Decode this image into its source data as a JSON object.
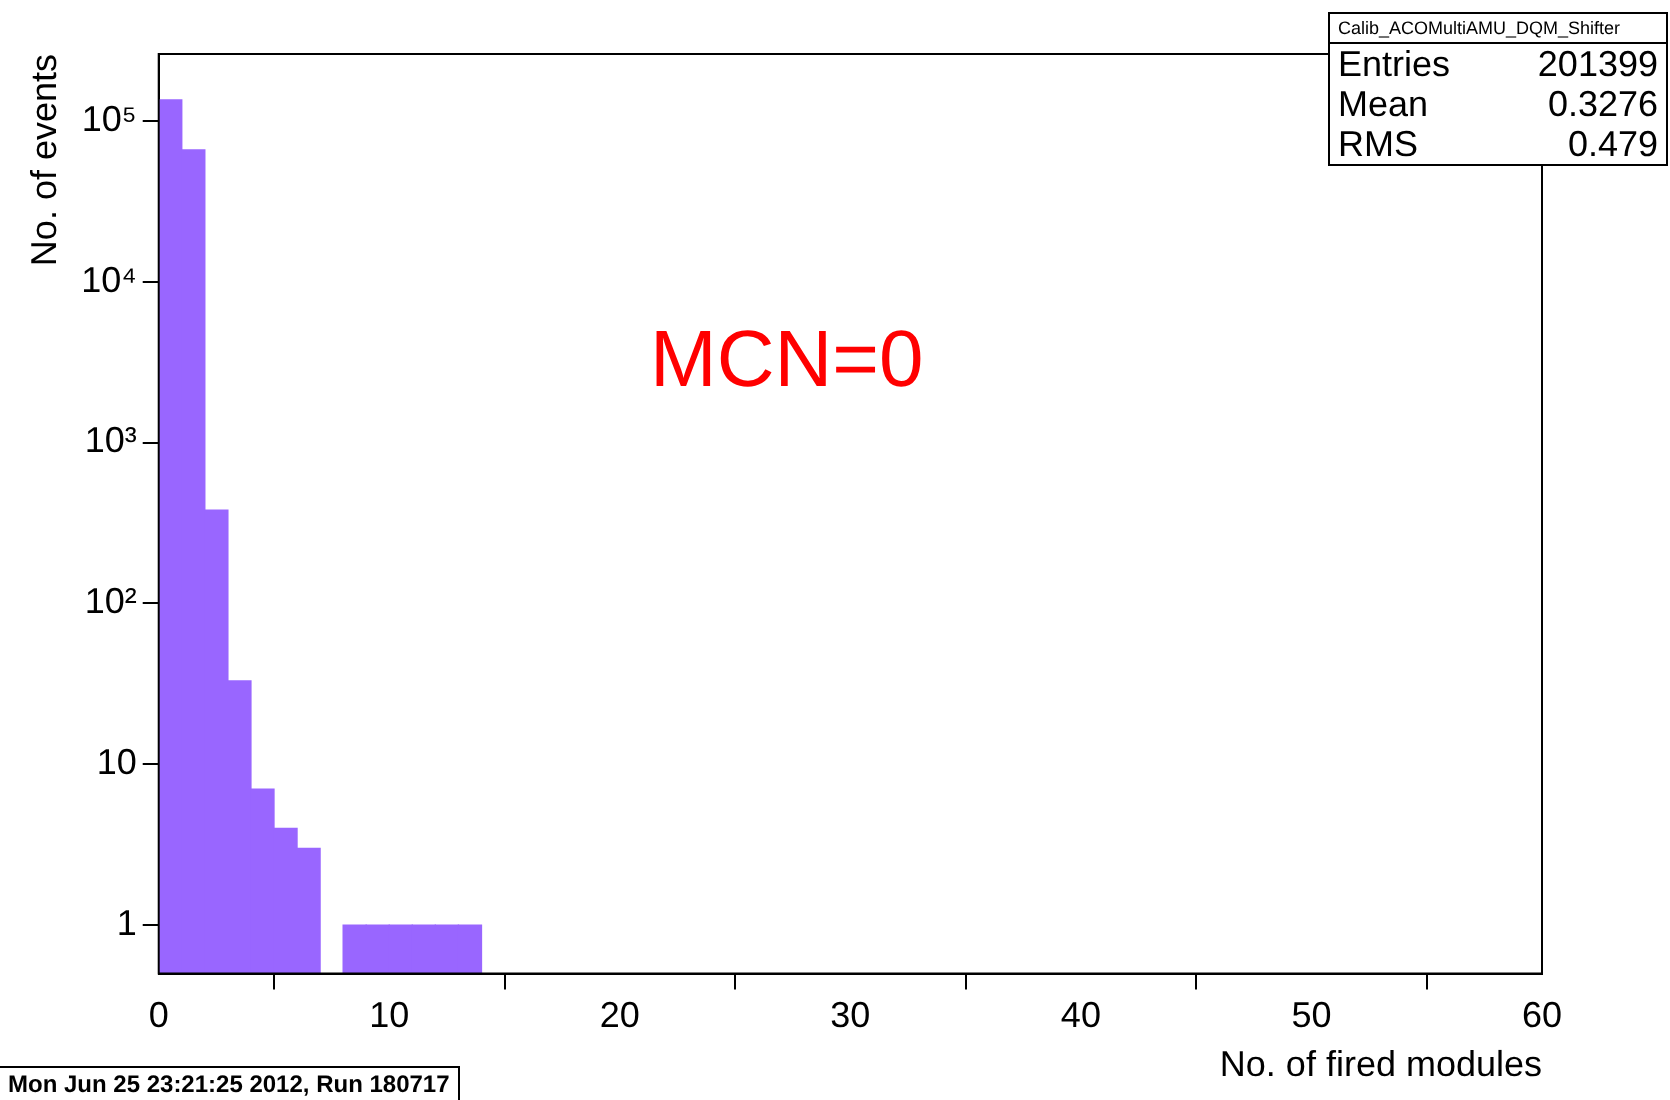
{
  "chart_data": {
    "type": "histogram",
    "xlabel": "No. of fired modules",
    "ylabel": "No. of events",
    "bins": [
      0,
      1,
      2,
      3,
      4,
      5,
      6,
      7,
      8,
      9,
      10,
      11,
      12,
      13,
      14
    ],
    "values": [
      135000,
      66000,
      380,
      33,
      7,
      4,
      3,
      null,
      1,
      1,
      1,
      1,
      1,
      1
    ],
    "color": "#9966ff",
    "xlim": [
      0,
      60
    ],
    "xticks": [
      0,
      10,
      20,
      30,
      40,
      50,
      60
    ],
    "ylim": [
      0.5,
      260000
    ],
    "yticks": [
      1,
      10,
      {
        "value": 100,
        "label": "10²"
      },
      {
        "value": 1000,
        "label": "10³"
      },
      {
        "value": 10000,
        "label": "10⁴"
      },
      {
        "value": 100000,
        "label": "10⁵"
      }
    ],
    "log": true,
    "annotations": [
      "MCN=0",
      "Calib_ACOMultiAMU_DQM_Shifter",
      "Entries 201399",
      "Mean 0.3276",
      "RMS 0.479",
      "Mon Jun 25 23:21:25 2012, Run 180717"
    ]
  }
}
